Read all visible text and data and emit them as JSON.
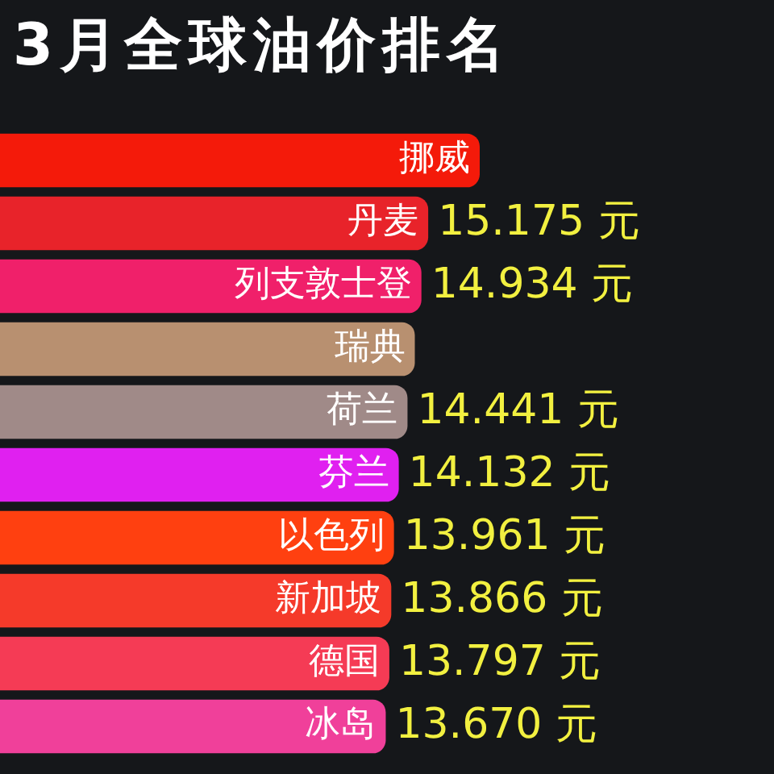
{
  "chart_data": {
    "type": "bar",
    "orientation": "horizontal",
    "title": "3月全球油价排名",
    "categories": [
      "挪威",
      "丹麦",
      "列支敦士登",
      "瑞典",
      "荷兰",
      "芬兰",
      "以色列",
      "新加坡",
      "德国",
      "冰岛"
    ],
    "values": [
      17.0,
      15.175,
      14.934,
      14.7,
      14.441,
      14.132,
      13.961,
      13.866,
      13.797,
      13.67
    ],
    "value_labels": [
      null,
      "15.175 元",
      "14.934 元",
      null,
      "14.441 元",
      "14.132 元",
      "13.961 元",
      "13.866 元",
      "13.797 元",
      "13.670 元"
    ],
    "colors": [
      "#f41a0a",
      "#e8232a",
      "#f0206a",
      "#b89070",
      "#a08a88",
      "#e020f0",
      "#ff4010",
      "#f53a2a",
      "#f53b55",
      "#f0409a"
    ],
    "tick_labels": false
  }
}
